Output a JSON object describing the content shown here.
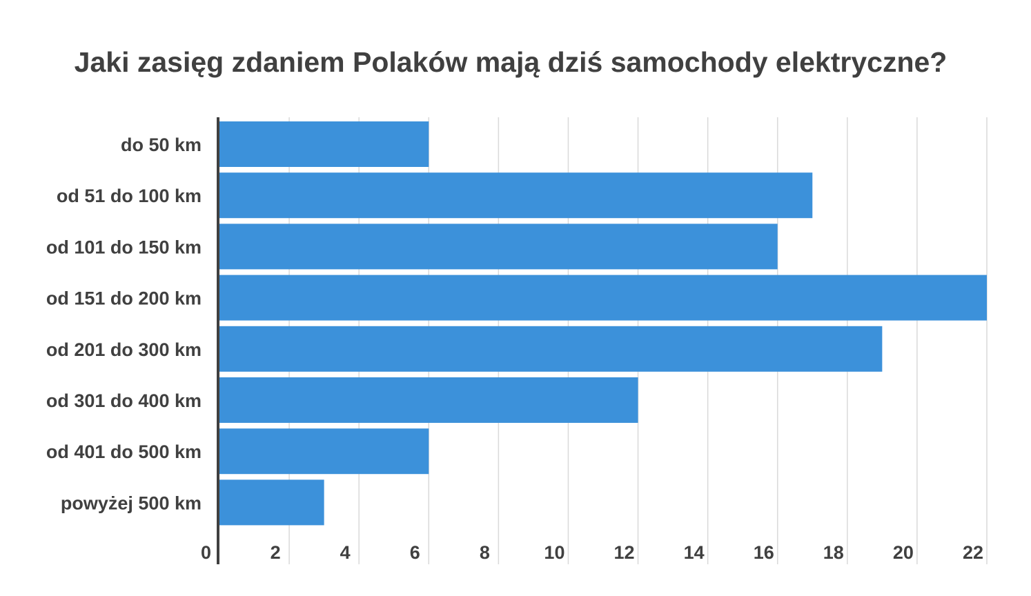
{
  "chart_data": {
    "type": "bar",
    "orientation": "horizontal",
    "title": "Jaki zasięg zdaniem Polaków mają dziś samochody elektryczne?",
    "xlabel": "",
    "ylabel": "",
    "categories": [
      "do 50 km",
      "od 51 do 100 km",
      "od 101 do 150 km",
      "od 151 do 200 km",
      "od 201 do 300 km",
      "od 301 do 400 km",
      "od 401 do 500 km",
      "powyżej 500 km"
    ],
    "values": [
      6,
      17,
      16,
      22,
      19,
      12,
      6,
      3
    ],
    "xlim": [
      0,
      22
    ],
    "xticks": [
      0,
      2,
      4,
      6,
      8,
      10,
      12,
      14,
      16,
      18,
      20,
      22
    ],
    "xtick_labels": [
      "0",
      "2",
      "4",
      "6",
      "8",
      "10",
      "12",
      "14",
      "16",
      "18",
      "20",
      "22"
    ],
    "grid": true,
    "legend": "none",
    "colors": {
      "bar": "#3c91da",
      "grid": "#d9d9d9",
      "axis": "#404040",
      "text": "#404040"
    }
  }
}
